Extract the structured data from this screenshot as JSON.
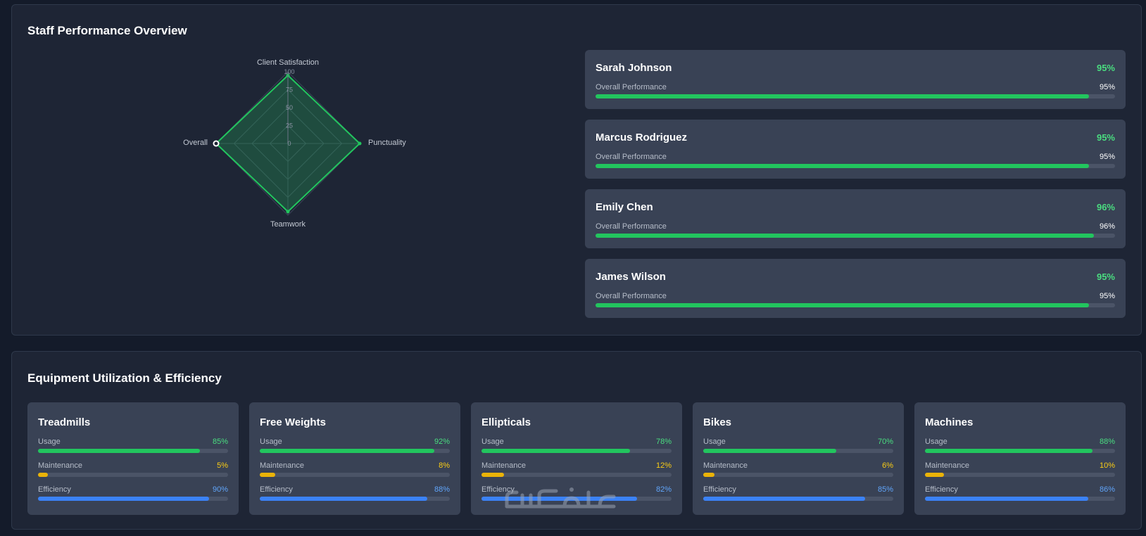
{
  "staff_section": {
    "title": "Staff Performance Overview",
    "radar": {
      "axes": [
        "Client Satisfaction",
        "Punctuality",
        "Teamwork",
        "Overall"
      ],
      "values": [
        95,
        100,
        95,
        100
      ],
      "scale_labels": [
        "0",
        "25",
        "50",
        "75",
        "100"
      ],
      "max": 100,
      "colors": {
        "line": "#22c55e",
        "fill": "#22c55e"
      }
    },
    "staff": [
      {
        "name": "Sarah Johnson",
        "score_label": "95%",
        "sub_label": "Overall Performance",
        "sub_value": "95%",
        "value": 95
      },
      {
        "name": "Marcus Rodriguez",
        "score_label": "95%",
        "sub_label": "Overall Performance",
        "sub_value": "95%",
        "value": 95
      },
      {
        "name": "Emily Chen",
        "score_label": "96%",
        "sub_label": "Overall Performance",
        "sub_value": "96%",
        "value": 96
      },
      {
        "name": "James Wilson",
        "score_label": "95%",
        "sub_label": "Overall Performance",
        "sub_value": "95%",
        "value": 95
      }
    ]
  },
  "equipment_section": {
    "title": "Equipment Utilization & Efficiency",
    "items": [
      {
        "name": "Treadmills",
        "metrics": [
          {
            "label": "Usage",
            "value_label": "85%",
            "value": 85,
            "color": "green"
          },
          {
            "label": "Maintenance",
            "value_label": "5%",
            "value": 5,
            "color": "yellow"
          },
          {
            "label": "Efficiency",
            "value_label": "90%",
            "value": 90,
            "color": "blue"
          }
        ]
      },
      {
        "name": "Free Weights",
        "metrics": [
          {
            "label": "Usage",
            "value_label": "92%",
            "value": 92,
            "color": "green"
          },
          {
            "label": "Maintenance",
            "value_label": "8%",
            "value": 8,
            "color": "yellow"
          },
          {
            "label": "Efficiency",
            "value_label": "88%",
            "value": 88,
            "color": "blue"
          }
        ]
      },
      {
        "name": "Ellipticals",
        "metrics": [
          {
            "label": "Usage",
            "value_label": "78%",
            "value": 78,
            "color": "green"
          },
          {
            "label": "Maintenance",
            "value_label": "12%",
            "value": 12,
            "color": "yellow"
          },
          {
            "label": "Efficiency",
            "value_label": "82%",
            "value": 82,
            "color": "blue"
          }
        ]
      },
      {
        "name": "Bikes",
        "metrics": [
          {
            "label": "Usage",
            "value_label": "70%",
            "value": 70,
            "color": "green"
          },
          {
            "label": "Maintenance",
            "value_label": "6%",
            "value": 6,
            "color": "yellow"
          },
          {
            "label": "Efficiency",
            "value_label": "85%",
            "value": 85,
            "color": "blue"
          }
        ]
      },
      {
        "name": "Machines",
        "metrics": [
          {
            "label": "Usage",
            "value_label": "88%",
            "value": 88,
            "color": "green"
          },
          {
            "label": "Maintenance",
            "value_label": "10%",
            "value": 10,
            "color": "yellow"
          },
          {
            "label": "Efficiency",
            "value_label": "86%",
            "value": 86,
            "color": "blue"
          }
        ]
      }
    ]
  },
  "watermark": {
    "text": "خمسات"
  }
}
